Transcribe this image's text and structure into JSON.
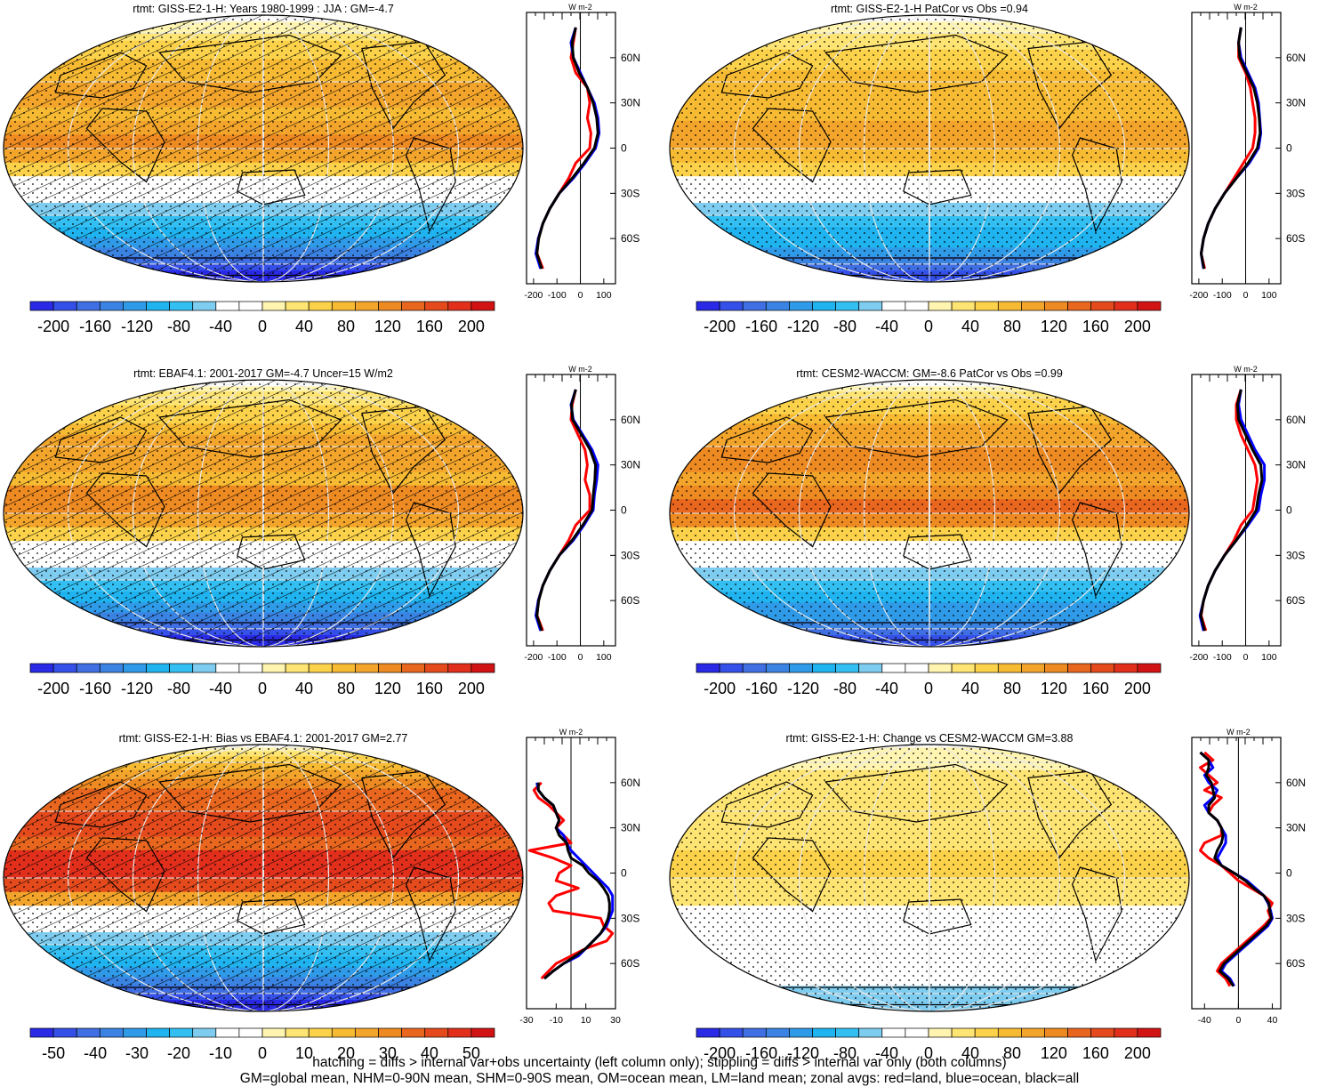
{
  "colors": {
    "land": "#ff0000",
    "ocean": "#0000ff",
    "all": "#000000",
    "palette": [
      "#2929e6",
      "#3550e8",
      "#3f6fe3",
      "#3a83e3",
      "#2f9be8",
      "#1fb3ef",
      "#33bff2",
      "#7ecdf0",
      "#ffffff",
      "#ffffff",
      "#fff4b0",
      "#fee472",
      "#fcd24a",
      "#f7ba33",
      "#f3a52b",
      "#ee8a22",
      "#e9661e",
      "#e54a1c",
      "#e22f1c",
      "#d21313"
    ]
  },
  "footnote": {
    "line1": "hatching = diffs > internal var+obs uncertainty (left column only); stippling = diffs > internal var only (both columns)",
    "line2": "GM=global mean, NHM=0-90N mean, SHM=0-90S mean, OM=ocean mean, LM=land mean; zonal avgs: red=land, blue=ocean, black=all"
  },
  "chart_data": [
    {
      "type": "heatmap",
      "title": "rtmt: GISS-E2-1-H: Years 1980-1999 : JJA : GM=-4.7",
      "colorbar_labels": [
        "-200",
        "-160",
        "-120",
        "-80",
        "-40",
        "0",
        "40",
        "80",
        "120",
        "160",
        "200"
      ],
      "field_peak": 105,
      "field_floor": -190,
      "hatched": true,
      "stippled": true,
      "zonal": {
        "type": "line",
        "unit": "W m-2",
        "xlim": [
          -230,
          150
        ],
        "xticks": [
          "-200",
          "-100",
          "0",
          "100"
        ],
        "yticks": [
          "60N",
          "30N",
          "0",
          "30S",
          "60S"
        ],
        "lat": [
          80,
          70,
          60,
          50,
          40,
          30,
          20,
          10,
          0,
          -10,
          -20,
          -30,
          -40,
          -50,
          -60,
          -70,
          -80
        ],
        "series": [
          {
            "name": "land",
            "values": [
              -20,
              -30,
              -40,
              -20,
              30,
              40,
              30,
              45,
              40,
              -20,
              -50,
              -90,
              -130,
              -160,
              -180,
              -185,
              -160
            ]
          },
          {
            "name": "ocean",
            "values": [
              -20,
              -40,
              -30,
              0,
              30,
              60,
              75,
              80,
              65,
              20,
              -30,
              -90,
              -130,
              -160,
              -180,
              -190,
              -170
            ]
          },
          {
            "name": "all",
            "values": [
              -20,
              -35,
              -30,
              -5,
              30,
              55,
              70,
              75,
              60,
              15,
              -35,
              -90,
              -130,
              -160,
              -178,
              -186,
              -165
            ]
          }
        ]
      }
    },
    {
      "type": "heatmap",
      "title": "rtmt: GISS-E2-1-H PatCor vs Obs =0.94",
      "colorbar_labels": [
        "-200",
        "-160",
        "-120",
        "-80",
        "-40",
        "0",
        "40",
        "80",
        "120",
        "160",
        "200"
      ],
      "field_peak": 90,
      "field_floor": -170,
      "hatched": false,
      "stippled": true,
      "zonal": {
        "type": "line",
        "unit": "W m-2",
        "xlim": [
          -230,
          150
        ],
        "xticks": [
          "-200",
          "-100",
          "0",
          "100"
        ],
        "yticks": [
          "60N",
          "30N",
          "0",
          "30S",
          "60S"
        ],
        "lat": [
          80,
          70,
          60,
          50,
          40,
          30,
          20,
          10,
          0,
          -10,
          -20,
          -30,
          -40,
          -50,
          -60,
          -70,
          -80
        ],
        "series": [
          {
            "name": "land",
            "values": [
              -20,
              -30,
              -30,
              0,
              20,
              30,
              40,
              40,
              30,
              -10,
              -50,
              -90,
              -130,
              -160,
              -180,
              -190,
              -175
            ]
          },
          {
            "name": "ocean",
            "values": [
              -20,
              -30,
              -20,
              10,
              40,
              55,
              60,
              65,
              55,
              15,
              -40,
              -90,
              -130,
              -160,
              -180,
              -190,
              -180
            ]
          },
          {
            "name": "all",
            "values": [
              -20,
              -30,
              -25,
              5,
              35,
              50,
              58,
              62,
              50,
              10,
              -40,
              -90,
              -130,
              -160,
              -180,
              -190,
              -178
            ]
          }
        ]
      }
    },
    {
      "type": "heatmap",
      "title": "rtmt: EBAF4.1: 2001-2017 GM=-4.7 Uncer=15 W/m2",
      "colorbar_labels": [
        "-200",
        "-160",
        "-120",
        "-80",
        "-40",
        "0",
        "40",
        "80",
        "120",
        "160",
        "200"
      ],
      "field_peak": 110,
      "field_floor": -190,
      "hatched": true,
      "stippled": true,
      "zonal": {
        "type": "line",
        "unit": "W m-2",
        "xlim": [
          -230,
          150
        ],
        "xticks": [
          "-200",
          "-100",
          "0",
          "100"
        ],
        "yticks": [
          "60N",
          "30N",
          "0",
          "30S",
          "60S"
        ],
        "lat": [
          80,
          70,
          60,
          50,
          40,
          30,
          20,
          10,
          0,
          -10,
          -20,
          -30,
          -40,
          -50,
          -60,
          -70,
          -80
        ],
        "series": [
          {
            "name": "land",
            "values": [
              -20,
              -35,
              -40,
              -10,
              20,
              30,
              20,
              40,
              40,
              -20,
              -50,
              -90,
              -130,
              -160,
              -180,
              -185,
              -160
            ]
          },
          {
            "name": "ocean",
            "values": [
              -20,
              -40,
              -30,
              10,
              50,
              75,
              70,
              60,
              55,
              15,
              -30,
              -90,
              -130,
              -160,
              -180,
              -190,
              -170
            ]
          },
          {
            "name": "all",
            "values": [
              -20,
              -38,
              -33,
              5,
              42,
              65,
              62,
              55,
              50,
              10,
              -35,
              -90,
              -130,
              -160,
              -178,
              -186,
              -165
            ]
          }
        ]
      }
    },
    {
      "type": "heatmap",
      "title": "rtmt: CESM2-WACCM: GM=-8.6 PatCor vs Obs =0.99",
      "colorbar_labels": [
        "-200",
        "-160",
        "-120",
        "-80",
        "-40",
        "0",
        "40",
        "80",
        "120",
        "160",
        "200"
      ],
      "field_peak": 125,
      "field_floor": -175,
      "hatched": false,
      "stippled": true,
      "zonal": {
        "type": "line",
        "unit": "W m-2",
        "xlim": [
          -230,
          150
        ],
        "xticks": [
          "-200",
          "-100",
          "0",
          "100"
        ],
        "yticks": [
          "60N",
          "30N",
          "0",
          "30S",
          "60S"
        ],
        "lat": [
          80,
          70,
          60,
          50,
          40,
          30,
          20,
          10,
          0,
          -10,
          -20,
          -30,
          -40,
          -50,
          -60,
          -70,
          -80
        ],
        "series": [
          {
            "name": "land",
            "values": [
              -20,
              -40,
              -40,
              -20,
              10,
              40,
              50,
              40,
              30,
              -20,
              -50,
              -90,
              -130,
              -160,
              -180,
              -190,
              -170
            ]
          },
          {
            "name": "ocean",
            "values": [
              -20,
              -30,
              -20,
              10,
              40,
              80,
              80,
              65,
              55,
              10,
              -40,
              -90,
              -130,
              -160,
              -180,
              -195,
              -180
            ]
          },
          {
            "name": "all",
            "values": [
              -20,
              -35,
              -30,
              0,
              30,
              65,
              70,
              55,
              45,
              5,
              -40,
              -90,
              -130,
              -160,
              -180,
              -192,
              -175
            ]
          }
        ]
      }
    },
    {
      "type": "heatmap",
      "title": "rtmt: GISS-E2-1-H: Bias vs EBAF4.1: 2001-2017 GM=2.77",
      "colorbar_labels": [
        "-50",
        "-40",
        "-30",
        "-20",
        "-10",
        "0",
        "10",
        "20",
        "30",
        "40",
        "50"
      ],
      "field_peak": 45,
      "field_floor": -50,
      "hatched": true,
      "stippled": true,
      "zonal": {
        "type": "line",
        "unit": "W m-2",
        "xlim": [
          -30,
          30
        ],
        "xticks": [
          "-30",
          "-10",
          "10",
          "30"
        ],
        "yticks": [
          "60N",
          "30N",
          "0",
          "30S",
          "60S"
        ],
        "lat": [
          60,
          55,
          50,
          45,
          40,
          35,
          30,
          25,
          20,
          15,
          10,
          5,
          0,
          -5,
          -10,
          -15,
          -20,
          -25,
          -30,
          -35,
          -40,
          -45,
          -50,
          -55,
          -60,
          -65,
          -70
        ],
        "series": [
          {
            "name": "land",
            "values": [
              -20,
              -25,
              -22,
              -15,
              -10,
              -5,
              -10,
              -5,
              0,
              -28,
              -12,
              0,
              -8,
              -10,
              5,
              -10,
              -15,
              -12,
              20,
              22,
              28,
              24,
              10,
              0,
              -10,
              -15,
              -20
            ]
          },
          {
            "name": "ocean",
            "values": [
              -23,
              -22,
              -18,
              -12,
              -10,
              -8,
              -10,
              -5,
              -3,
              0,
              5,
              10,
              15,
              20,
              25,
              28,
              28,
              28,
              26,
              24,
              20,
              15,
              10,
              5,
              -5,
              -12,
              -18
            ]
          },
          {
            "name": "all",
            "values": [
              -22,
              -22,
              -18,
              -12,
              -10,
              -8,
              -10,
              -8,
              -3,
              -2,
              0,
              8,
              12,
              18,
              22,
              25,
              26,
              26,
              25,
              23,
              20,
              15,
              10,
              3,
              -5,
              -12,
              -18
            ]
          }
        ]
      }
    },
    {
      "type": "heatmap",
      "title": "rtmt: GISS-E2-1-H: Change vs CESM2-WACCM GM=3.88",
      "colorbar_labels": [
        "-200",
        "-160",
        "-120",
        "-80",
        "-40",
        "0",
        "40",
        "80",
        "120",
        "160",
        "200"
      ],
      "field_peak": 45,
      "field_floor": -55,
      "hatched": false,
      "stippled": true,
      "zonal": {
        "type": "line",
        "unit": "W m-2",
        "xlim": [
          -55,
          50
        ],
        "xticks": [
          "-40",
          "0",
          "40"
        ],
        "yticks": [
          "60N",
          "30N",
          "0",
          "30S",
          "60S"
        ],
        "lat": [
          80,
          75,
          70,
          65,
          60,
          55,
          50,
          45,
          40,
          35,
          30,
          25,
          20,
          15,
          10,
          5,
          0,
          -5,
          -10,
          -15,
          -20,
          -25,
          -30,
          -35,
          -40,
          -45,
          -50,
          -55,
          -60,
          -65,
          -70,
          -75
        ],
        "series": [
          {
            "name": "land",
            "values": [
              -40,
              -30,
              -45,
              -35,
              -25,
              -40,
              -20,
              -30,
              -35,
              -25,
              -20,
              -20,
              -40,
              -45,
              -35,
              -20,
              -10,
              0,
              15,
              30,
              40,
              35,
              38,
              30,
              20,
              10,
              0,
              -10,
              -20,
              -25,
              -15,
              -10
            ]
          },
          {
            "name": "ocean",
            "values": [
              -45,
              -35,
              -30,
              -40,
              -35,
              -25,
              -30,
              -40,
              -35,
              -25,
              -20,
              -15,
              -15,
              -20,
              -25,
              -20,
              -5,
              10,
              20,
              30,
              35,
              38,
              40,
              35,
              25,
              15,
              5,
              -5,
              -15,
              -20,
              -10,
              -5
            ]
          },
          {
            "name": "all",
            "values": [
              -45,
              -35,
              -35,
              -38,
              -32,
              -30,
              -28,
              -35,
              -35,
              -25,
              -20,
              -18,
              -20,
              -25,
              -28,
              -20,
              -5,
              8,
              18,
              30,
              36,
              37,
              39,
              33,
              23,
              13,
              3,
              -7,
              -17,
              -22,
              -12,
              -6
            ]
          }
        ]
      }
    }
  ]
}
